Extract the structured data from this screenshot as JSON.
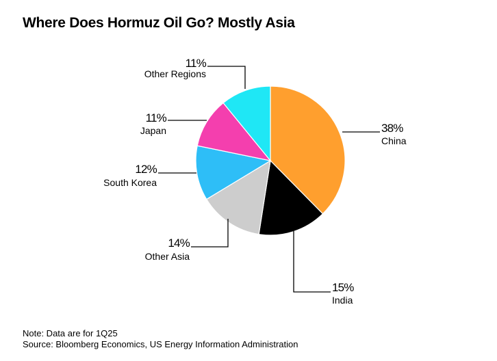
{
  "chart_data": {
    "type": "pie",
    "title": "Where Does Hormuz Oil Go? Mostly Asia",
    "note": "Note: Data are for 1Q25",
    "source": "Source: Bloomberg Economics, US Energy Information Administration",
    "slices": [
      {
        "label": "China",
        "value": 38,
        "value_label": "38%",
        "color": "#FF9F2E"
      },
      {
        "label": "India",
        "value": 15,
        "value_label": "15%",
        "color": "#000000"
      },
      {
        "label": "Other Asia",
        "value": 14,
        "value_label": "14%",
        "color": "#CDCDCD"
      },
      {
        "label": "South Korea",
        "value": 12,
        "value_label": "12%",
        "color": "#2EBEF7"
      },
      {
        "label": "Japan",
        "value": 11,
        "value_label": "11%",
        "color": "#F43FAE"
      },
      {
        "label": "Other Regions",
        "value": 11,
        "value_label": "11%",
        "color": "#1FE7F5"
      }
    ],
    "start_angle": "12 o'clock",
    "direction": "clockwise",
    "legend": "none (direct labels with leader lines)"
  }
}
